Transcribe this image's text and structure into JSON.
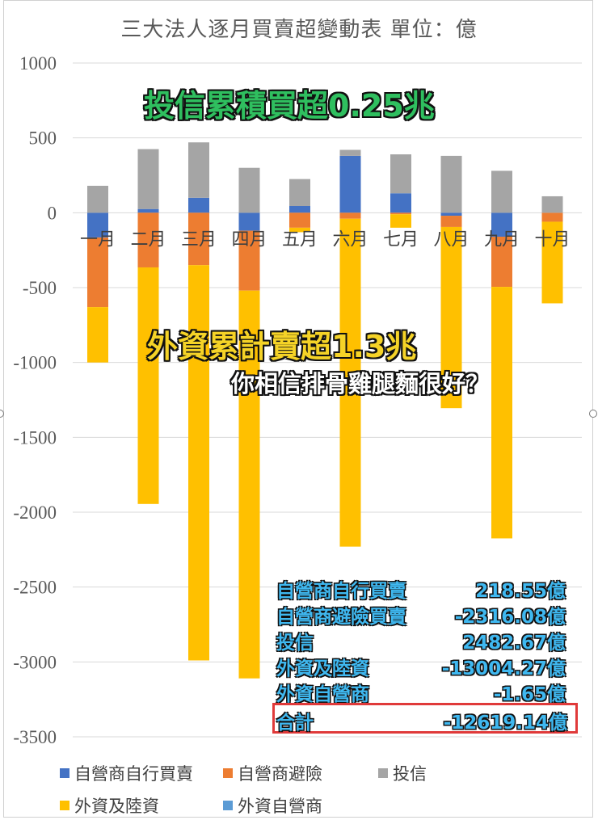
{
  "title": "三大法人逐月買賣超變動表 單位：億",
  "annotations": {
    "trust_total": "投信累積買超0.25兆",
    "foreign_total": "外資累計賣超1.3兆",
    "question": "你相信排骨雞腿麵很好？"
  },
  "colors": {
    "dealer_self": "#4472c4",
    "dealer_hedge": "#ed7d31",
    "trust": "#a5a5a5",
    "foreign": "#ffc000",
    "foreign_dealer": "#5b9bd5"
  },
  "summary": [
    {
      "label": "自營商自行買賣",
      "value": "218.55億"
    },
    {
      "label": "自營商避險買賣",
      "value": "-2316.08億"
    },
    {
      "label": "投信",
      "value": "2482.67億"
    },
    {
      "label": "外資及陸資",
      "value": "-13004.27億"
    },
    {
      "label": "外資自營商",
      "value": "-1.65億"
    },
    {
      "label": "合計",
      "value": "-12619.14億"
    }
  ],
  "chart_data": {
    "type": "bar",
    "stacked": true,
    "categories": [
      "一月",
      "二月",
      "三月",
      "四月",
      "五月",
      "六月",
      "七月",
      "八月",
      "九月",
      "十月"
    ],
    "ylim": [
      -3500,
      1000
    ],
    "yticks": [
      "1000",
      "500",
      "0",
      "-500",
      "-1000",
      "-1500",
      "-2000",
      "-2500",
      "-3000",
      "-3500"
    ],
    "grid": true,
    "legend_position": "bottom",
    "series": [
      {
        "name": "自營商自行買賣",
        "values": [
          -165,
          25,
          100,
          -120,
          45,
          380,
          130,
          -20,
          -160,
          0
        ]
      },
      {
        "name": "自營商避險",
        "values": [
          -465,
          -365,
          -350,
          -400,
          -100,
          -40,
          -10,
          -75,
          -335,
          -60
        ]
      },
      {
        "name": "投信",
        "values": [
          180,
          400,
          370,
          300,
          180,
          40,
          260,
          380,
          280,
          110
        ]
      },
      {
        "name": "外資及陸資",
        "values": [
          -370,
          -1580,
          -2640,
          -2590,
          -30,
          -2190,
          -90,
          -1210,
          -1680,
          -545
        ]
      },
      {
        "name": "外資自營商",
        "values": [
          0,
          0,
          0,
          0,
          0,
          0,
          0,
          0,
          0,
          0
        ]
      }
    ]
  }
}
